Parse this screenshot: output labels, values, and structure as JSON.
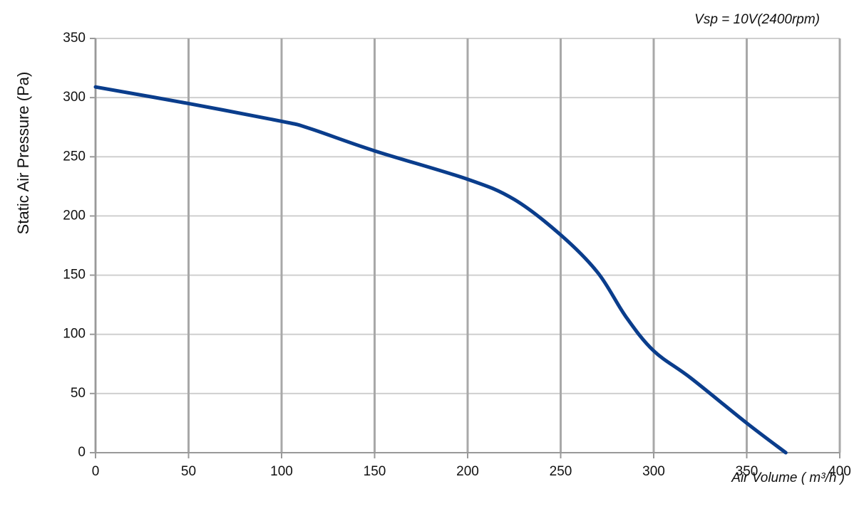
{
  "chart_data": {
    "type": "line",
    "annotation": "Vsp = 10V(2400rpm)",
    "x_label": "Air Volume ( m³/h )",
    "y_label": "Static Air Pressure  (Pa)",
    "x": [
      0,
      50,
      100,
      115,
      150,
      200,
      225,
      250,
      270,
      285,
      300,
      320,
      350,
      371
    ],
    "series": [
      {
        "color": "#0a3d8c",
        "values": [
          309,
          295,
          280,
          274,
          255,
          231,
          214,
          184,
          152,
          115,
          86,
          63,
          25,
          0
        ]
      }
    ],
    "xlim": [
      0,
      400
    ],
    "xticks": [
      0,
      50,
      100,
      150,
      200,
      250,
      300,
      350,
      400
    ],
    "ylim": [
      0,
      350
    ],
    "yticks": [
      0,
      50,
      100,
      150,
      200,
      250,
      300,
      350
    ],
    "grid": true
  }
}
